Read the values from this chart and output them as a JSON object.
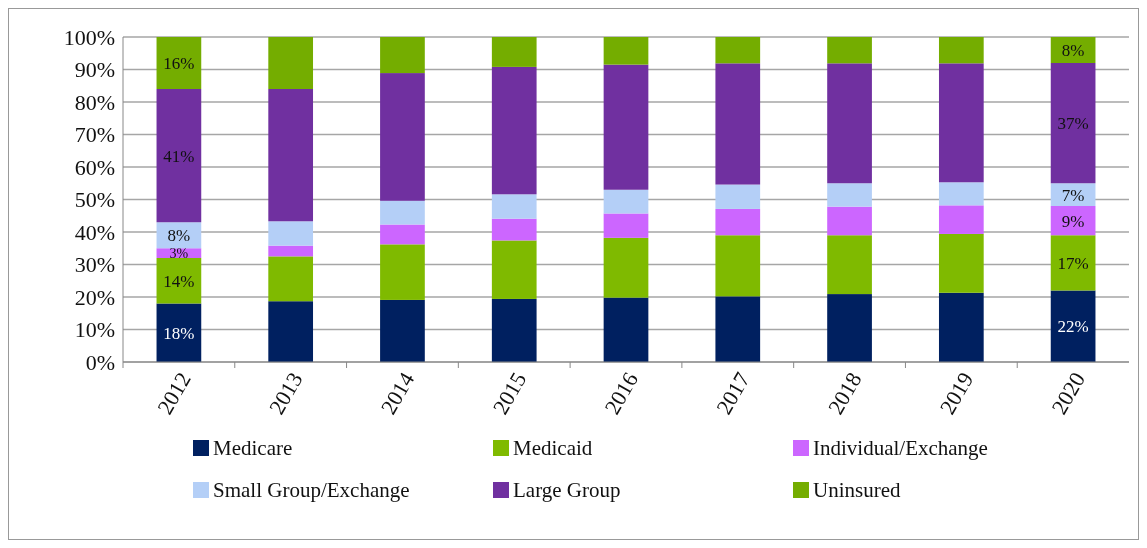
{
  "chart_data": {
    "type": "bar",
    "stacked": true,
    "categories": [
      "2012",
      "2013",
      "2014",
      "2015",
      "2016",
      "2017",
      "2018",
      "2019",
      "2020"
    ],
    "series": [
      {
        "name": "Medicare",
        "color": "#002060",
        "values": [
          18,
          18.7,
          19.1,
          19.4,
          19.8,
          20.2,
          20.9,
          21.3,
          22
        ],
        "value_labels": [
          "18%",
          null,
          null,
          null,
          null,
          null,
          null,
          null,
          "22%"
        ]
      },
      {
        "name": "Medicaid",
        "color": "#7fba00",
        "values": [
          14,
          13.8,
          17.1,
          18,
          18.4,
          18.8,
          18.1,
          18.1,
          17
        ],
        "value_labels": [
          "14%",
          null,
          null,
          null,
          null,
          null,
          null,
          null,
          "17%"
        ]
      },
      {
        "name": "Individual/Exchange",
        "color": "#cc66ff",
        "values": [
          3,
          3.3,
          6.1,
          6.7,
          7.5,
          8.1,
          8.8,
          8.8,
          9
        ],
        "value_labels": [
          "3%",
          null,
          null,
          null,
          null,
          null,
          null,
          null,
          "9%"
        ]
      },
      {
        "name": "Small Group/Exchange",
        "color": "#b4cff7",
        "values": [
          8,
          7.5,
          7.3,
          7.5,
          7.3,
          7.5,
          7.2,
          7.1,
          7
        ],
        "value_labels": [
          "8%",
          null,
          null,
          null,
          null,
          null,
          null,
          null,
          "7%"
        ]
      },
      {
        "name": "Large Group",
        "color": "#7030a0",
        "values": [
          41,
          40.7,
          39.3,
          39.2,
          38.5,
          37.3,
          36.9,
          36.6,
          37
        ],
        "value_labels": [
          "41%",
          null,
          null,
          null,
          null,
          null,
          null,
          null,
          "37%"
        ]
      },
      {
        "name": "Uninsured",
        "color": "#74ad00",
        "values": [
          16,
          16,
          11.1,
          9.2,
          8.5,
          8.1,
          8.1,
          8.1,
          8
        ],
        "value_labels": [
          "16%",
          null,
          null,
          null,
          null,
          null,
          null,
          null,
          "8%"
        ]
      }
    ],
    "ylim": [
      0,
      100
    ],
    "yticks": [
      {
        "value": 0,
        "label": "0%"
      },
      {
        "value": 10,
        "label": "10%"
      },
      {
        "value": 20,
        "label": "20%"
      },
      {
        "value": 30,
        "label": "30%"
      },
      {
        "value": 40,
        "label": "40%"
      },
      {
        "value": 50,
        "label": "50%"
      },
      {
        "value": 60,
        "label": "60%"
      },
      {
        "value": 70,
        "label": "70%"
      },
      {
        "value": 80,
        "label": "80%"
      },
      {
        "value": 90,
        "label": "90%"
      },
      {
        "value": 100,
        "label": "100%"
      }
    ],
    "grid": "y",
    "legend": "bottom"
  }
}
